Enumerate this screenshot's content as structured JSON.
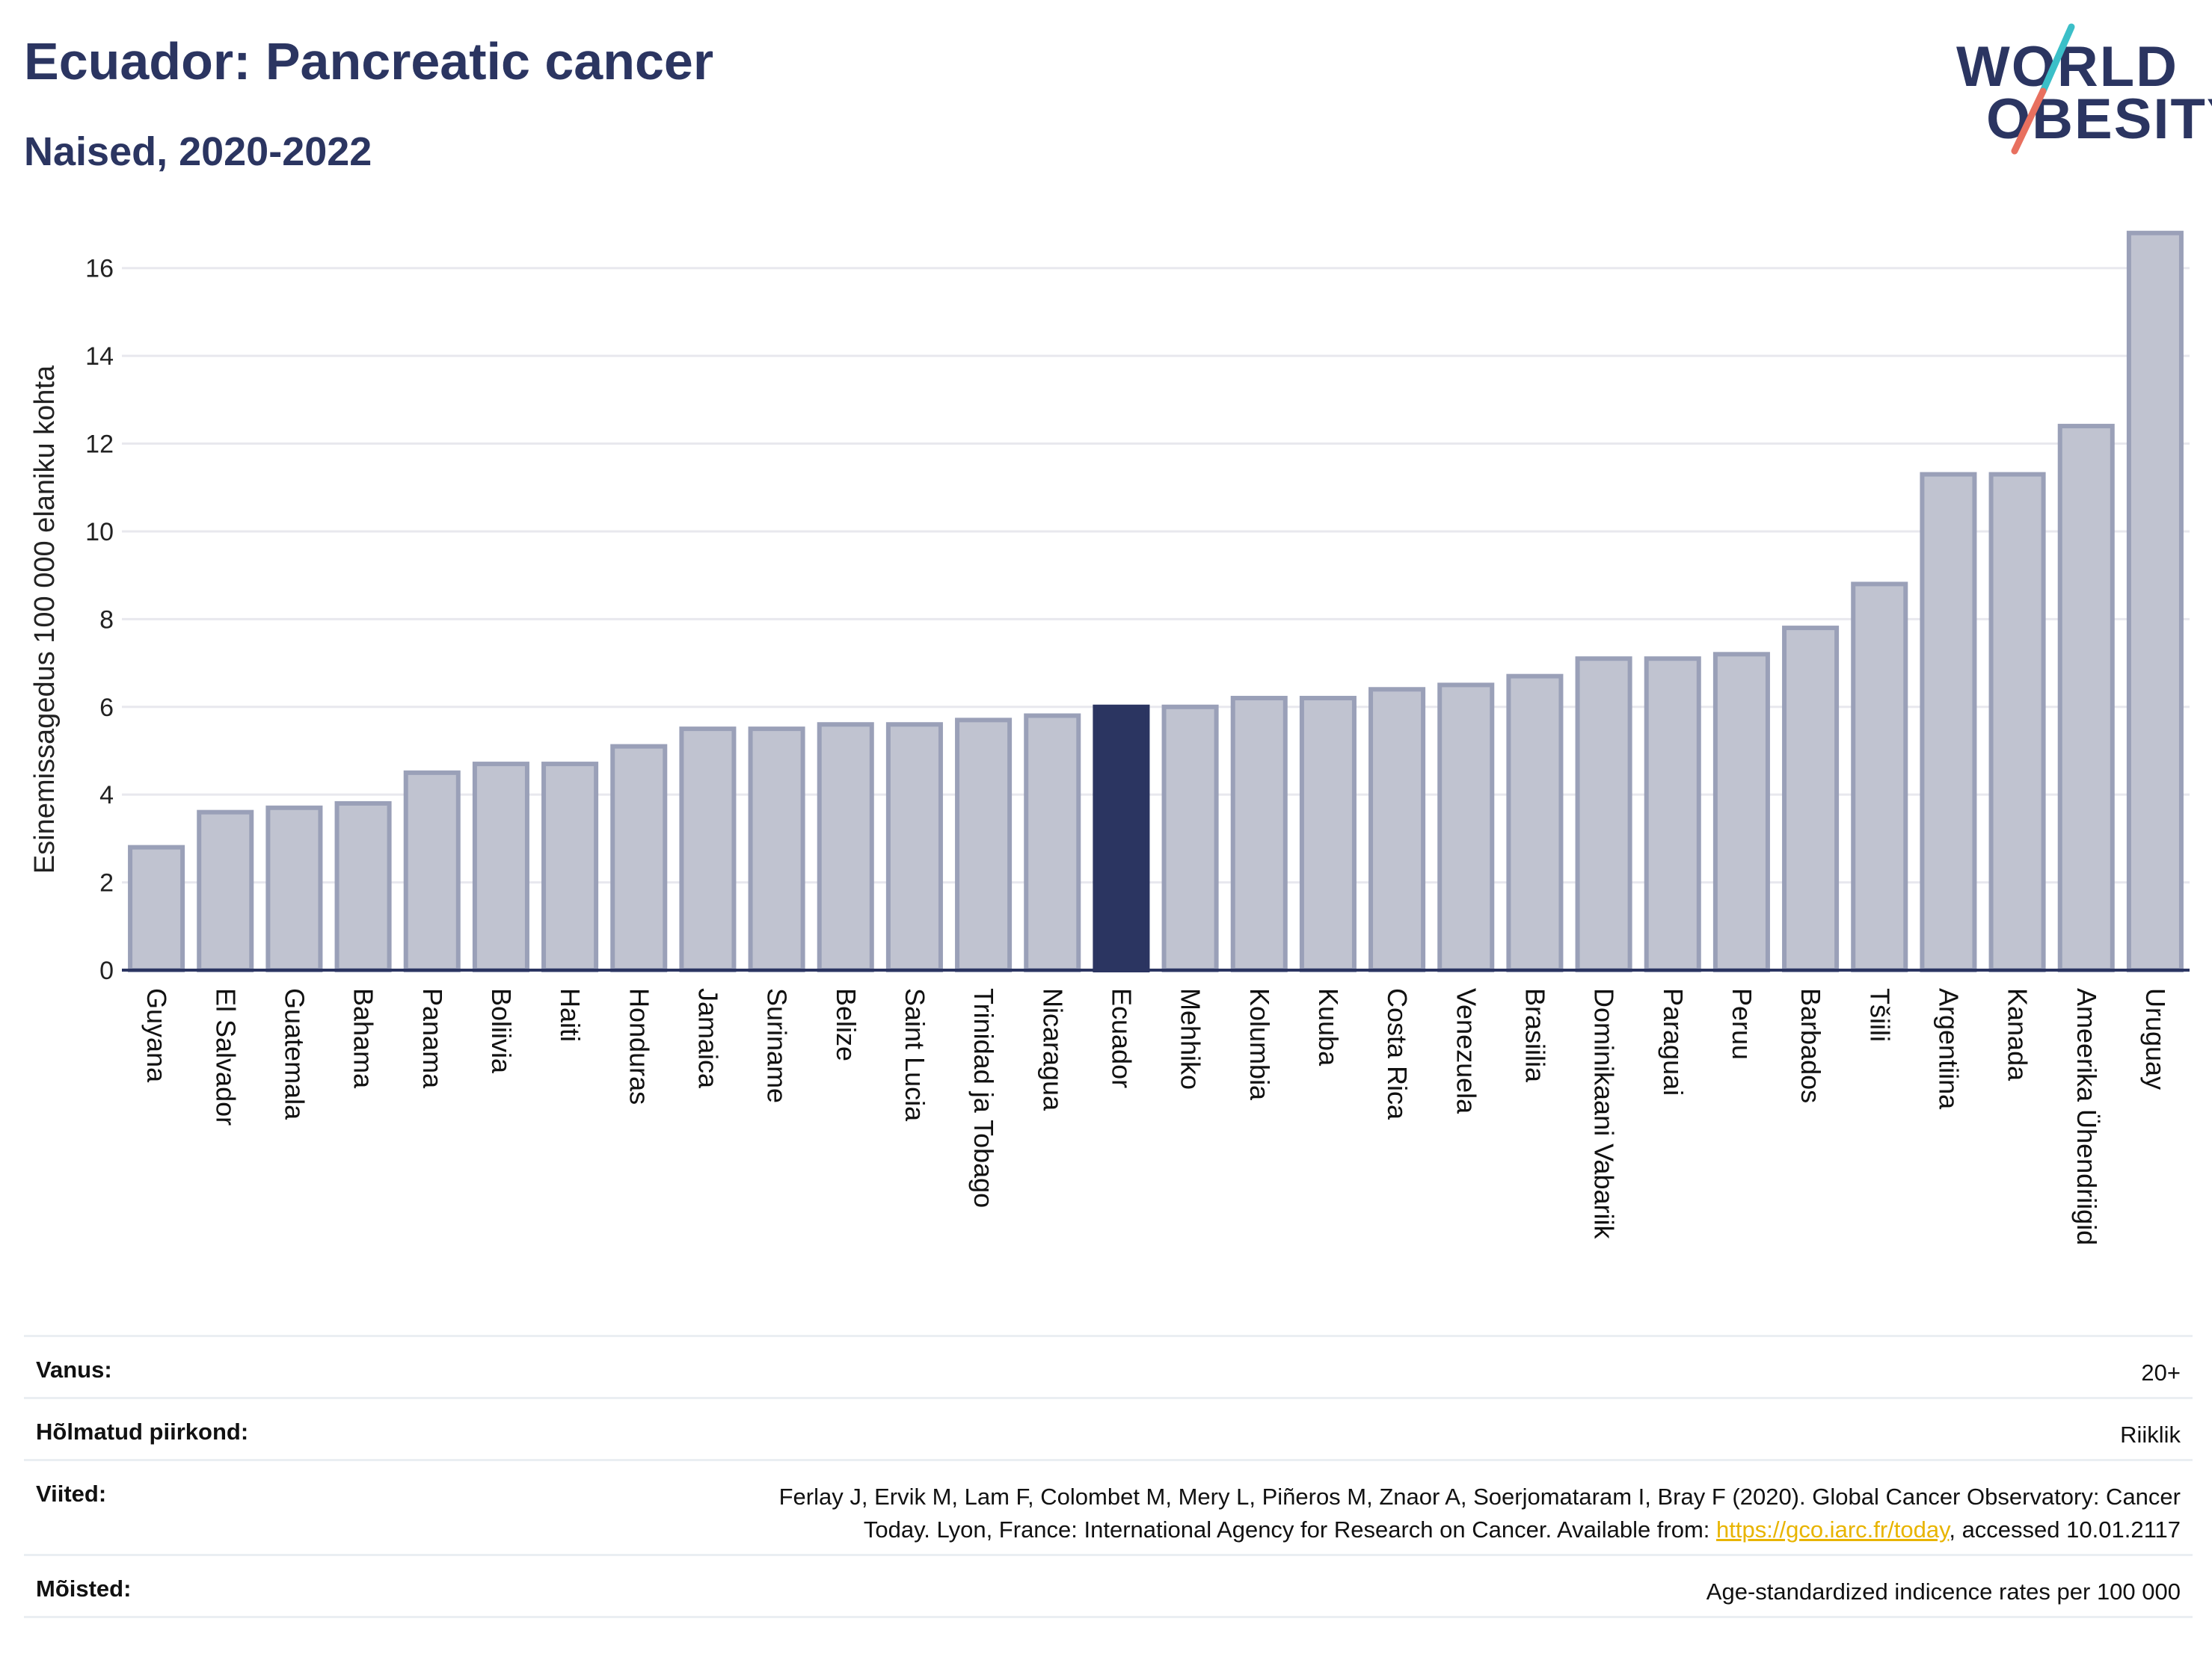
{
  "header": {
    "title": "Ecuador: Pancreatic cancer",
    "subtitle": "Naised, 2020-2022"
  },
  "logo": {
    "line1": "WORLD",
    "line2": "OBESITY",
    "accent_colors": [
      "#3bbfc8",
      "#e8705f"
    ]
  },
  "colors": {
    "bar": "#c0c3d0",
    "bar_border": "#9aa0b8",
    "highlight": "#2b3561",
    "grid": "#e8e8ee",
    "axis": "#2b3561"
  },
  "chart_data": {
    "type": "bar",
    "ylabel": "Esinemissagedus 100 000 elaniku kohta",
    "ylim": [
      0,
      17
    ],
    "yticks": [
      0,
      2,
      4,
      6,
      8,
      10,
      12,
      14,
      16
    ],
    "grid": true,
    "highlight": "Ecuador",
    "categories": [
      "Guyana",
      "El Salvador",
      "Guatemala",
      "Bahama",
      "Panama",
      "Boliivia",
      "Haiti",
      "Honduras",
      "Jamaica",
      "Suriname",
      "Belize",
      "Saint Lucia",
      "Trinidad ja Tobago",
      "Nicaragua",
      "Ecuador",
      "Mehhiko",
      "Kolumbia",
      "Kuuba",
      "Costa Rica",
      "Venezuela",
      "Brasiilia",
      "Dominikaani Vabariik",
      "Paraguai",
      "Peruu",
      "Barbados",
      "Tšiili",
      "Argentiina",
      "Kanada",
      "Ameerika Ühendriigid",
      "Uruguay"
    ],
    "values": [
      2.8,
      3.6,
      3.7,
      3.8,
      4.5,
      4.7,
      4.7,
      5.1,
      5.5,
      5.5,
      5.6,
      5.6,
      5.7,
      5.8,
      6.0,
      6.0,
      6.2,
      6.2,
      6.4,
      6.5,
      6.7,
      7.1,
      7.1,
      7.2,
      7.8,
      8.8,
      11.3,
      11.3,
      12.4,
      16.8
    ]
  },
  "meta": {
    "age_label": "Vanus:",
    "age_value": "20+",
    "region_label": "Hõlmatud piirkond:",
    "region_value": "Riiklik",
    "refs_label": "Viited:",
    "refs_line1": "Ferlay J, Ervik M, Lam F, Colombet M, Mery L, Piñeros M, Znaor A, Soerjomataram I, Bray F (2020). Global Cancer Observatory: Cancer",
    "refs_line2_pre": "Today. Lyon, France: International Agency for Research on Cancer. Available from: ",
    "refs_link": "https://gco.iarc.fr/today",
    "refs_line2_post": ", accessed 10.01.2117",
    "def_label": "Mõisted:",
    "def_value": "Age-standardized indicence rates per 100 000"
  }
}
